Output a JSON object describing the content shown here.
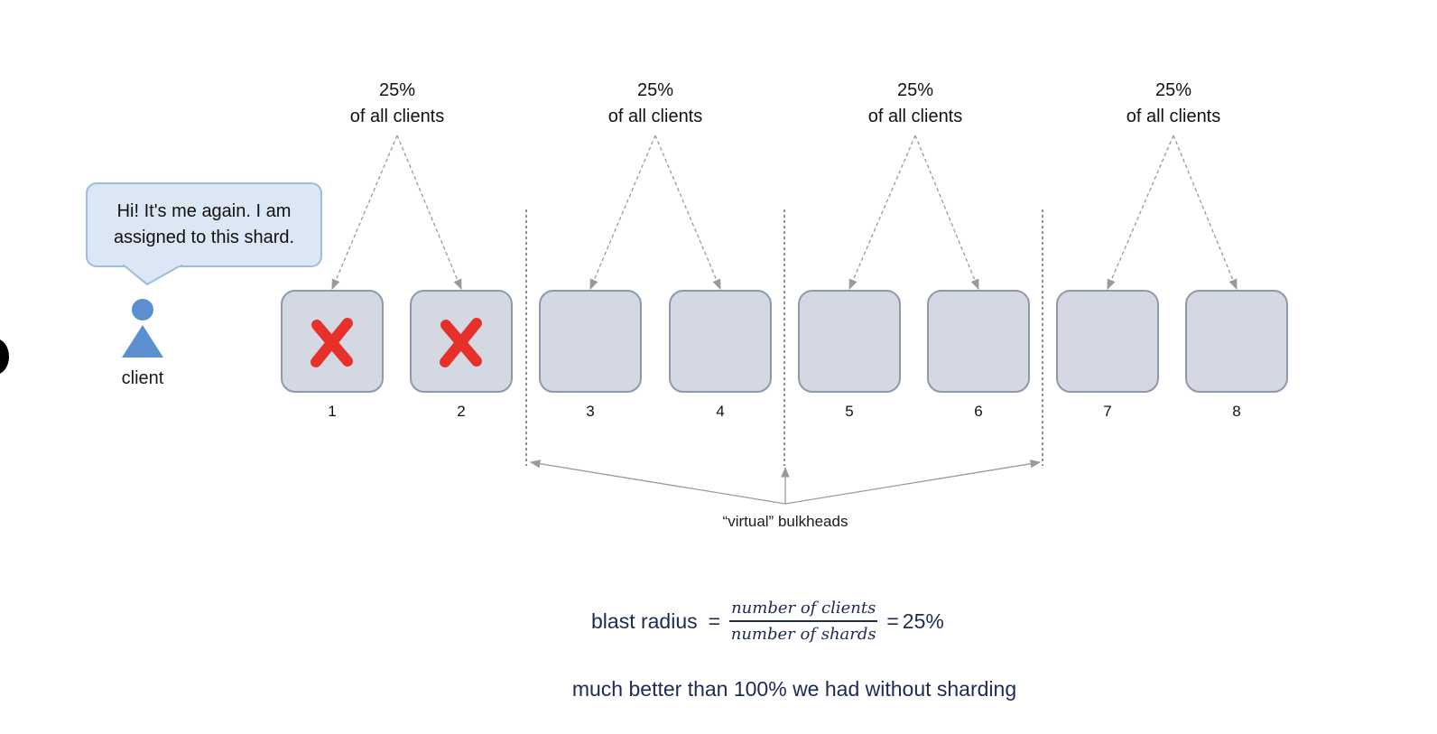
{
  "groups": [
    {
      "percent": "25%",
      "label": "of all clients"
    },
    {
      "percent": "25%",
      "label": "of all clients"
    },
    {
      "percent": "25%",
      "label": "of all clients"
    },
    {
      "percent": "25%",
      "label": "of all clients"
    }
  ],
  "shards": [
    {
      "number": "1",
      "failed": true
    },
    {
      "number": "2",
      "failed": true
    },
    {
      "number": "3",
      "failed": false
    },
    {
      "number": "4",
      "failed": false
    },
    {
      "number": "5",
      "failed": false
    },
    {
      "number": "6",
      "failed": false
    },
    {
      "number": "7",
      "failed": false
    },
    {
      "number": "8",
      "failed": false
    }
  ],
  "client": {
    "label": "client",
    "speech": "Hi! It's me again. I am\nassigned to this shard."
  },
  "bulkheads_label": "“virtual” bulkheads",
  "formula": {
    "lhs": "blast radius",
    "numerator": "number of clients",
    "denominator": "number of shards",
    "result": "25%"
  },
  "summary": "much better than 100% we had without sharding",
  "colors": {
    "shard_fill": "#d3d8e2",
    "shard_border": "#8e99ab",
    "failure_mark": "#e8302a",
    "client_icon": "#5b8fd0",
    "text_accent": "#1c2a56"
  }
}
